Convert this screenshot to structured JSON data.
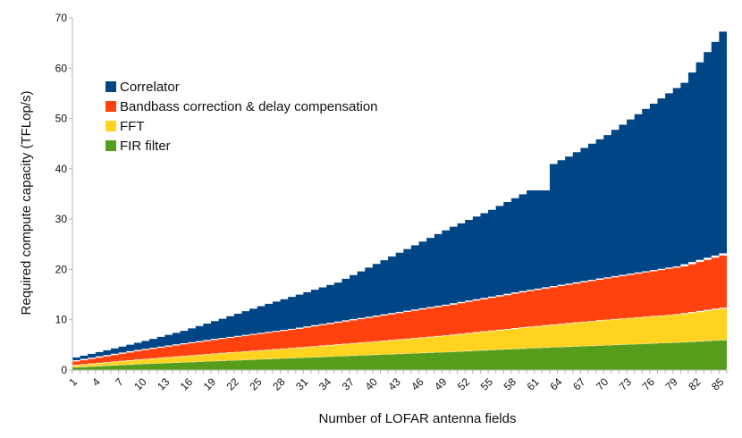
{
  "chart_data": {
    "type": "area",
    "stacked": true,
    "xlabel": "Number of LOFAR antenna fields",
    "ylabel": "Required compute capacity  (TFLop/s)",
    "x_range": [
      1,
      86
    ],
    "ylim": [
      0,
      70
    ],
    "y_ticks": [
      0,
      10,
      20,
      30,
      40,
      50,
      60,
      70
    ],
    "x_tick_labels": [
      "1",
      "4",
      "7",
      "10",
      "13",
      "16",
      "19",
      "22",
      "25",
      "28",
      "31",
      "34",
      "37",
      "40",
      "43",
      "46",
      "49",
      "52",
      "55",
      "58",
      "61",
      "64",
      "67",
      "70",
      "73",
      "76",
      "79",
      "82",
      "85"
    ],
    "grid": false,
    "legend_position": "top-left",
    "series": [
      {
        "name": "FIR filter",
        "color": "#579d1c",
        "points": [
          [
            1,
            0.5
          ],
          [
            10,
            1.2
          ],
          [
            20,
            1.8
          ],
          [
            30,
            2.4
          ],
          [
            40,
            3.0
          ],
          [
            50,
            3.6
          ],
          [
            60,
            4.3
          ],
          [
            70,
            4.9
          ],
          [
            80,
            5.5
          ],
          [
            86,
            6.0
          ]
        ]
      },
      {
        "name": "FFT",
        "color": "#ffd320",
        "points": [
          [
            1,
            0.4
          ],
          [
            10,
            0.9
          ],
          [
            20,
            1.5
          ],
          [
            30,
            2.0
          ],
          [
            40,
            2.6
          ],
          [
            50,
            3.3
          ],
          [
            60,
            4.2
          ],
          [
            70,
            5.0
          ],
          [
            80,
            5.6
          ],
          [
            86,
            6.4
          ]
        ]
      },
      {
        "name": "Bandbass correction & delay compensation",
        "color": "#ff420e",
        "points": [
          [
            1,
            0.8
          ],
          [
            10,
            1.9
          ],
          [
            20,
            2.9
          ],
          [
            30,
            3.8
          ],
          [
            40,
            5.0
          ],
          [
            50,
            6.1
          ],
          [
            60,
            7.2
          ],
          [
            70,
            8.3
          ],
          [
            80,
            9.5
          ],
          [
            86,
            10.8
          ]
        ]
      },
      {
        "name": "Correlator",
        "color": "#004586",
        "points": [
          [
            1,
            0.8
          ],
          [
            5,
            1.2
          ],
          [
            10,
            1.8
          ],
          [
            15,
            2.7
          ],
          [
            20,
            4.0
          ],
          [
            25,
            5.5
          ],
          [
            30,
            6.8
          ],
          [
            35,
            8.0
          ],
          [
            40,
            10.5
          ],
          [
            45,
            13.0
          ],
          [
            50,
            15.5
          ],
          [
            55,
            17.5
          ],
          [
            60,
            20.0
          ],
          [
            62,
            19.5
          ],
          [
            63,
            24.5
          ],
          [
            65,
            25.5
          ],
          [
            70,
            28.5
          ],
          [
            75,
            32.5
          ],
          [
            80,
            36.5
          ],
          [
            85,
            44.5
          ],
          [
            86,
            45.0
          ]
        ]
      }
    ],
    "legend": [
      {
        "label": "Correlator",
        "color": "#004586"
      },
      {
        "label": "Bandbass correction & delay compensation",
        "color": "#ff420e"
      },
      {
        "label": "FFT",
        "color": "#ffd320"
      },
      {
        "label": "FIR filter",
        "color": "#579d1c"
      }
    ]
  }
}
